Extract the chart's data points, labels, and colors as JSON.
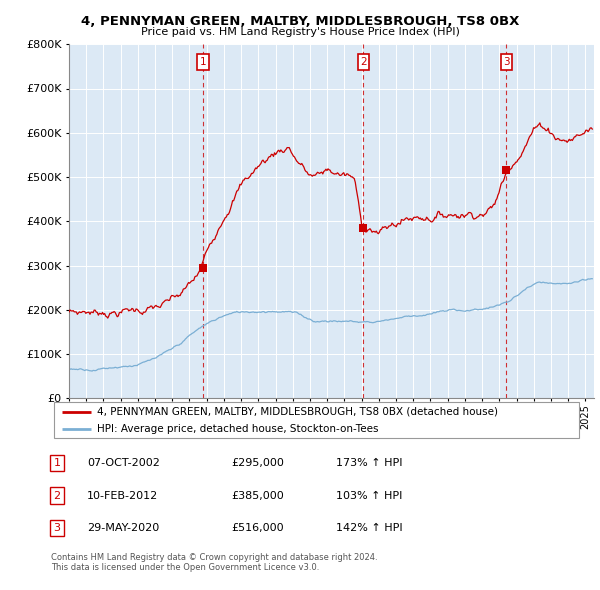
{
  "title": "4, PENNYMAN GREEN, MALTBY, MIDDLESBROUGH, TS8 0BX",
  "subtitle": "Price paid vs. HM Land Registry's House Price Index (HPI)",
  "sale_dates_display": [
    "07-OCT-2002",
    "10-FEB-2012",
    "29-MAY-2020"
  ],
  "sale_prices": [
    295000,
    385000,
    516000
  ],
  "sale_years_decimal": [
    2002.771,
    2012.108,
    2020.413
  ],
  "sale_hpi_pct": [
    "173%",
    "103%",
    "142%"
  ],
  "legend_line1": "4, PENNYMAN GREEN, MALTBY, MIDDLESBROUGH, TS8 0BX (detached house)",
  "legend_line2": "HPI: Average price, detached house, Stockton-on-Tees",
  "footnote1": "Contains HM Land Registry data © Crown copyright and database right 2024.",
  "footnote2": "This data is licensed under the Open Government Licence v3.0.",
  "red_color": "#cc0000",
  "blue_color": "#7bafd4",
  "vline_color": "#cc0000",
  "bg_color": "#dce9f5",
  "grid_color": "#b8c8d8",
  "ylim_max": 800000,
  "xlim_start": 1995.0,
  "xlim_end": 2025.5,
  "red_control_points": [
    [
      1995.0,
      195000
    ],
    [
      1995.5,
      193000
    ],
    [
      1996.0,
      197000
    ],
    [
      1996.5,
      195000
    ],
    [
      1997.0,
      199000
    ],
    [
      1997.5,
      200000
    ],
    [
      1998.0,
      201000
    ],
    [
      1998.5,
      203000
    ],
    [
      1999.0,
      204000
    ],
    [
      1999.5,
      206000
    ],
    [
      2000.0,
      208000
    ],
    [
      2000.5,
      211000
    ],
    [
      2001.0,
      218000
    ],
    [
      2001.5,
      228000
    ],
    [
      2002.0,
      248000
    ],
    [
      2002.5,
      272000
    ],
    [
      2002.771,
      295000
    ],
    [
      2003.0,
      320000
    ],
    [
      2003.5,
      370000
    ],
    [
      2004.0,
      420000
    ],
    [
      2004.5,
      460000
    ],
    [
      2005.0,
      490000
    ],
    [
      2005.5,
      510000
    ],
    [
      2006.0,
      530000
    ],
    [
      2006.5,
      545000
    ],
    [
      2007.0,
      560000
    ],
    [
      2007.5,
      570000
    ],
    [
      2007.8,
      575000
    ],
    [
      2008.0,
      560000
    ],
    [
      2008.5,
      535000
    ],
    [
      2009.0,
      510000
    ],
    [
      2009.5,
      505000
    ],
    [
      2010.0,
      515000
    ],
    [
      2010.5,
      510000
    ],
    [
      2011.0,
      505000
    ],
    [
      2011.5,
      495000
    ],
    [
      2012.108,
      385000
    ],
    [
      2012.5,
      390000
    ],
    [
      2013.0,
      380000
    ],
    [
      2013.5,
      385000
    ],
    [
      2014.0,
      395000
    ],
    [
      2014.5,
      405000
    ],
    [
      2015.0,
      410000
    ],
    [
      2015.5,
      415000
    ],
    [
      2016.0,
      418000
    ],
    [
      2016.5,
      420000
    ],
    [
      2017.0,
      422000
    ],
    [
      2017.5,
      425000
    ],
    [
      2018.0,
      428000
    ],
    [
      2018.5,
      430000
    ],
    [
      2019.0,
      435000
    ],
    [
      2019.5,
      440000
    ],
    [
      2020.413,
      516000
    ],
    [
      2021.0,
      560000
    ],
    [
      2021.5,
      590000
    ],
    [
      2022.0,
      620000
    ],
    [
      2022.5,
      625000
    ],
    [
      2023.0,
      615000
    ],
    [
      2023.5,
      600000
    ],
    [
      2024.0,
      595000
    ],
    [
      2024.5,
      600000
    ],
    [
      2025.0,
      610000
    ],
    [
      2025.3,
      615000
    ]
  ],
  "blue_control_points": [
    [
      1995.0,
      65000
    ],
    [
      1995.5,
      66000
    ],
    [
      1996.0,
      67000
    ],
    [
      1996.5,
      68000
    ],
    [
      1997.0,
      70000
    ],
    [
      1997.5,
      72000
    ],
    [
      1998.0,
      75000
    ],
    [
      1998.5,
      77000
    ],
    [
      1999.0,
      80000
    ],
    [
      1999.5,
      84000
    ],
    [
      2000.0,
      90000
    ],
    [
      2000.5,
      98000
    ],
    [
      2001.0,
      108000
    ],
    [
      2001.5,
      122000
    ],
    [
      2002.0,
      138000
    ],
    [
      2002.5,
      152000
    ],
    [
      2003.0,
      165000
    ],
    [
      2003.5,
      175000
    ],
    [
      2004.0,
      185000
    ],
    [
      2004.5,
      190000
    ],
    [
      2005.0,
      193000
    ],
    [
      2005.5,
      195000
    ],
    [
      2006.0,
      197000
    ],
    [
      2006.5,
      199000
    ],
    [
      2007.0,
      200000
    ],
    [
      2007.5,
      200000
    ],
    [
      2008.0,
      196000
    ],
    [
      2008.5,
      188000
    ],
    [
      2009.0,
      180000
    ],
    [
      2009.5,
      176000
    ],
    [
      2010.0,
      178000
    ],
    [
      2010.5,
      177000
    ],
    [
      2011.0,
      176000
    ],
    [
      2011.5,
      175000
    ],
    [
      2012.0,
      174000
    ],
    [
      2012.5,
      174000
    ],
    [
      2013.0,
      176000
    ],
    [
      2013.5,
      179000
    ],
    [
      2014.0,
      183000
    ],
    [
      2014.5,
      186000
    ],
    [
      2015.0,
      189000
    ],
    [
      2015.5,
      191000
    ],
    [
      2016.0,
      193000
    ],
    [
      2016.5,
      195000
    ],
    [
      2017.0,
      197000
    ],
    [
      2017.5,
      198000
    ],
    [
      2018.0,
      199000
    ],
    [
      2018.5,
      200000
    ],
    [
      2019.0,
      203000
    ],
    [
      2019.5,
      207000
    ],
    [
      2020.0,
      212000
    ],
    [
      2020.5,
      218000
    ],
    [
      2021.0,
      230000
    ],
    [
      2021.5,
      245000
    ],
    [
      2022.0,
      255000
    ],
    [
      2022.5,
      258000
    ],
    [
      2023.0,
      255000
    ],
    [
      2023.5,
      252000
    ],
    [
      2024.0,
      255000
    ],
    [
      2024.5,
      258000
    ],
    [
      2025.0,
      260000
    ],
    [
      2025.3,
      262000
    ]
  ]
}
